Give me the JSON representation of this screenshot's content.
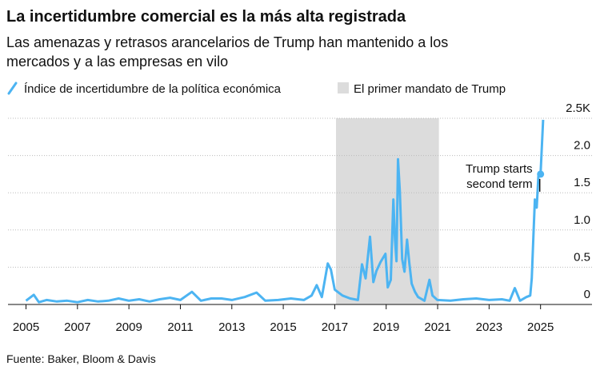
{
  "chart_data": {
    "type": "line",
    "title": "La incertidumbre comercial es la más alta registrada",
    "subtitle": [
      "Las amenazas y retrasos arancelarios de Trump han mantenido a los",
      "mercados y a las empresas en vilo"
    ],
    "source": "Fuente: Baker, Bloom & Davis",
    "series": [
      {
        "name": "Índice de incertidumbre de la política económica",
        "color": "#4cb4f2",
        "x": [
          2005.0,
          2005.3,
          2005.5,
          2005.8,
          2006.2,
          2006.6,
          2007.0,
          2007.4,
          2007.8,
          2008.2,
          2008.6,
          2009.0,
          2009.4,
          2009.8,
          2010.2,
          2010.6,
          2011.0,
          2011.45,
          2011.8,
          2012.2,
          2012.6,
          2013.0,
          2013.5,
          2013.96,
          2014.3,
          2014.8,
          2015.3,
          2015.8,
          2016.1,
          2016.3,
          2016.5,
          2016.73,
          2016.85,
          2017.0,
          2017.3,
          2017.6,
          2017.9,
          2018.06,
          2018.2,
          2018.37,
          2018.5,
          2018.62,
          2018.78,
          2018.97,
          2019.06,
          2019.18,
          2019.28,
          2019.34,
          2019.4,
          2019.46,
          2019.53,
          2019.62,
          2019.71,
          2019.81,
          2019.9,
          2019.99,
          2020.12,
          2020.24,
          2020.49,
          2020.68,
          2020.8,
          2020.99,
          2021.5,
          2022.0,
          2022.5,
          2023.0,
          2023.5,
          2023.8,
          2024.0,
          2024.2,
          2024.45,
          2024.6,
          2024.66,
          2024.72,
          2024.78,
          2024.85,
          2024.92,
          2025.0,
          2025.1
        ],
        "values": [
          0.05,
          0.13,
          0.03,
          0.06,
          0.04,
          0.05,
          0.03,
          0.06,
          0.04,
          0.05,
          0.08,
          0.05,
          0.07,
          0.04,
          0.07,
          0.09,
          0.06,
          0.17,
          0.05,
          0.08,
          0.08,
          0.06,
          0.1,
          0.16,
          0.05,
          0.06,
          0.08,
          0.06,
          0.12,
          0.26,
          0.1,
          0.55,
          0.47,
          0.2,
          0.12,
          0.08,
          0.06,
          0.54,
          0.35,
          0.91,
          0.3,
          0.45,
          0.57,
          0.68,
          0.23,
          0.33,
          1.41,
          0.87,
          0.58,
          1.95,
          1.52,
          0.61,
          0.44,
          0.87,
          0.55,
          0.28,
          0.17,
          0.1,
          0.05,
          0.33,
          0.12,
          0.06,
          0.05,
          0.07,
          0.08,
          0.06,
          0.07,
          0.05,
          0.22,
          0.05,
          0.1,
          0.12,
          0.35,
          0.9,
          1.41,
          1.3,
          1.75,
          1.75,
          2.48
        ]
      }
    ],
    "shade": {
      "name": "El primer mandato de Trump",
      "color": "#dcdcdc",
      "start": 2017.05,
      "end": 2021.05
    },
    "annotation": {
      "text": [
        "Trump starts",
        "second term"
      ],
      "x": 2025.0,
      "y": 1.75
    },
    "xlim": [
      2004.3,
      2027.0
    ],
    "xticks": [
      2005,
      2007,
      2009,
      2011,
      2013,
      2015,
      2017,
      2019,
      2021,
      2023,
      2025
    ],
    "ylim": [
      0,
      2.5
    ],
    "yticks": [
      0,
      0.5,
      {
        "value": 1,
        "label": "1.0"
      },
      1.5,
      {
        "value": 2,
        "label": "2.0"
      },
      {
        "value": 2.5,
        "label": "2.5K"
      }
    ],
    "grid": true
  }
}
